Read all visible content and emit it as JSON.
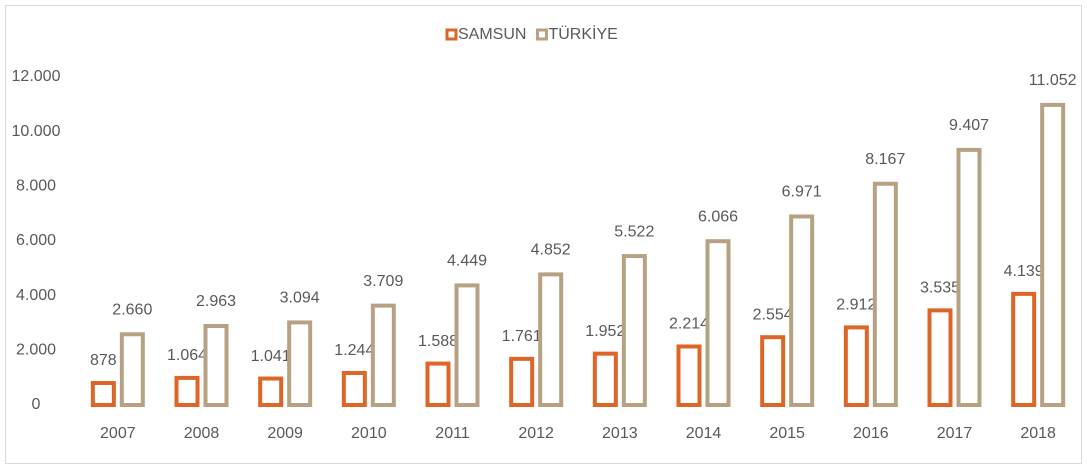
{
  "chart_data": {
    "type": "bar",
    "categories": [
      "2007",
      "2008",
      "2009",
      "2010",
      "2011",
      "2012",
      "2013",
      "2014",
      "2015",
      "2016",
      "2017",
      "2018"
    ],
    "series": [
      {
        "name": "SAMSUN",
        "color": "#de6528",
        "values": [
          878,
          1064,
          1041,
          1244,
          1588,
          1761,
          1952,
          2214,
          2554,
          2912,
          3535,
          4139
        ],
        "value_labels": [
          "878",
          "1.064",
          "1.041",
          "1.244",
          "1.588",
          "1.761",
          "1.952",
          "2.214",
          "2.554",
          "2.912",
          "3.535",
          "4.139"
        ]
      },
      {
        "name": "TÜRKİYE",
        "color": "#b6a283",
        "values": [
          2660,
          2963,
          3094,
          3709,
          4449,
          4852,
          5522,
          6066,
          6971,
          8167,
          9407,
          11052
        ],
        "value_labels": [
          "2.660",
          "2.963",
          "3.094",
          "3.709",
          "4.449",
          "4.852",
          "5.522",
          "6.066",
          "6.971",
          "8.167",
          "9.407",
          "11.052"
        ]
      }
    ],
    "ylim": [
      0,
      12000
    ],
    "yticks": [
      0,
      {
        "value": 2000,
        "label": "2.000"
      },
      {
        "value": 4000,
        "label": "4.000"
      },
      {
        "value": 6000,
        "label": "6.000"
      },
      {
        "value": 8000,
        "label": "8.000"
      },
      {
        "value": 10000,
        "label": "10.000"
      },
      {
        "value": 12000,
        "label": "12.000"
      }
    ],
    "grid": false,
    "legend": "top"
  }
}
